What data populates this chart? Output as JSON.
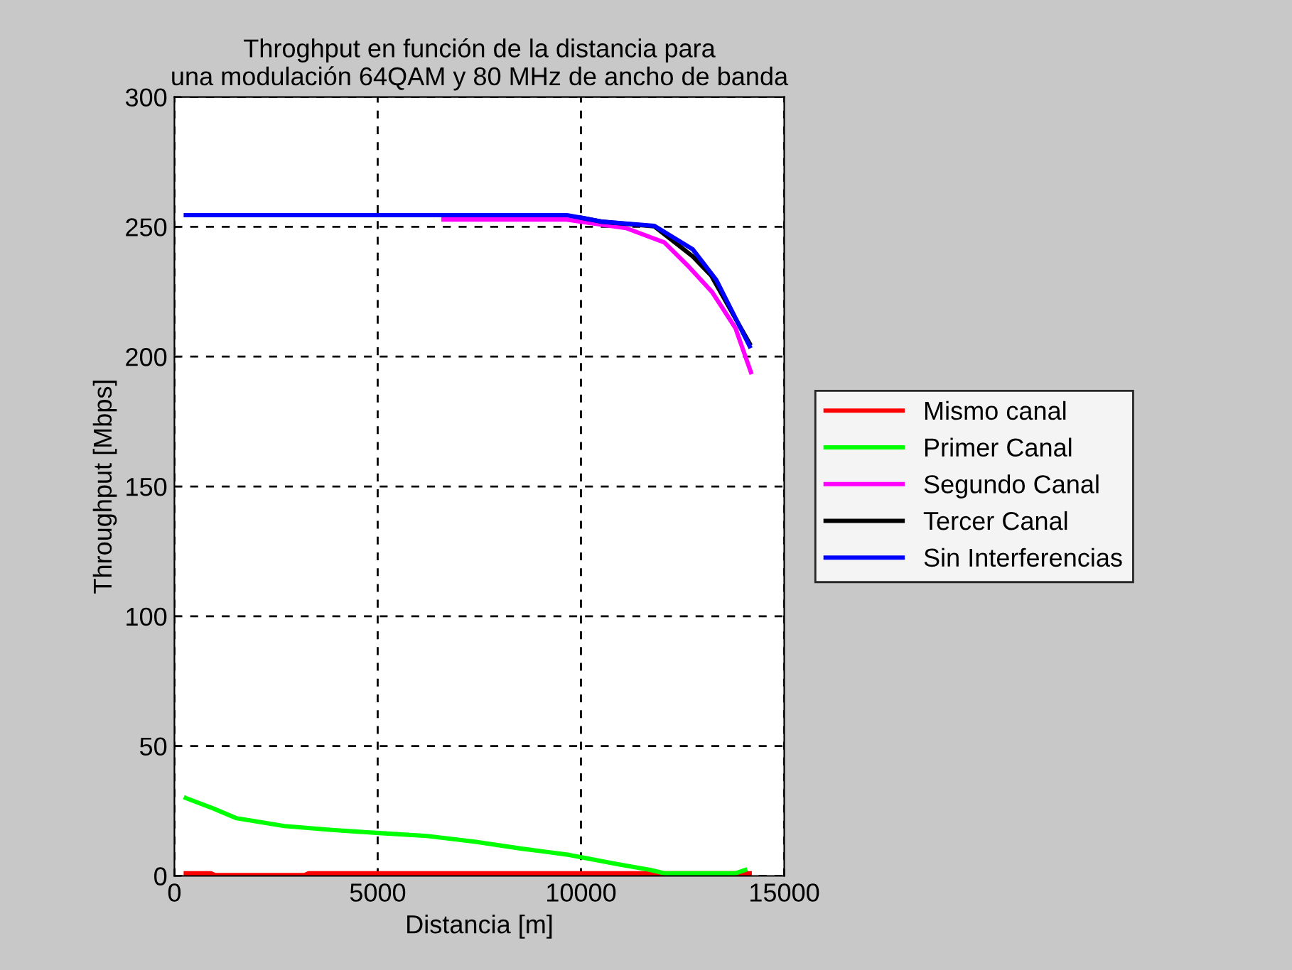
{
  "chart_data": {
    "type": "line",
    "title": "Throghput en función de la distancia para\nuna modulación 64QAM y 80 MHz de ancho de banda",
    "xlabel": "Distancia [m]",
    "ylabel": "Throughput [Mbps]",
    "xlim": [
      0,
      15000
    ],
    "xticks": [
      0,
      5000,
      10000,
      15000
    ],
    "ylim": [
      0,
      300
    ],
    "yticks": [
      0,
      50,
      100,
      150,
      200,
      250,
      300
    ],
    "grid": true,
    "legend": "right",
    "line_style": "solid",
    "marker": "none",
    "series": [
      {
        "name": "Mismo canal",
        "color": "#ff0000",
        "x": [
          280,
          900,
          1000,
          3200,
          3300,
          14150
        ],
        "values": [
          1,
          1,
          0.3,
          0.3,
          1,
          1
        ]
      },
      {
        "name": "Primer Canal",
        "color": "#00ff00",
        "x": [
          280,
          950,
          1530,
          2700,
          3870,
          5040,
          6210,
          7380,
          8540,
          9710,
          10880,
          11700,
          12050,
          13800,
          14040
        ],
        "values": [
          30,
          26,
          22.2,
          19.2,
          17.7,
          16.5,
          15.4,
          13.2,
          10.5,
          8.1,
          4.6,
          2.3,
          1,
          1,
          2.3
        ]
      },
      {
        "name": "Segundo Canal",
        "color": "#ff00ff",
        "x": [
          6620,
          9650,
          10000,
          11110,
          12050,
          12630,
          13220,
          13800,
          14180
        ],
        "values": [
          252.8,
          252.8,
          252,
          249.5,
          244,
          235,
          225,
          211,
          194
        ]
      },
      {
        "name": "Tercer Canal",
        "color": "#000000",
        "x": [
          10000,
          10500,
          11800,
          12750,
          13200,
          14150
        ],
        "values": [
          253.5,
          252,
          250.2,
          238.6,
          231.3,
          205
        ]
      },
      {
        "name": "Sin Interferencias",
        "color": "#0000ff",
        "x": [
          280,
          9650,
          10000,
          10500,
          11800,
          12750,
          13330,
          14150
        ],
        "values": [
          254.5,
          254.5,
          253.5,
          252,
          250.4,
          241.3,
          229.5,
          204
        ]
      }
    ]
  }
}
